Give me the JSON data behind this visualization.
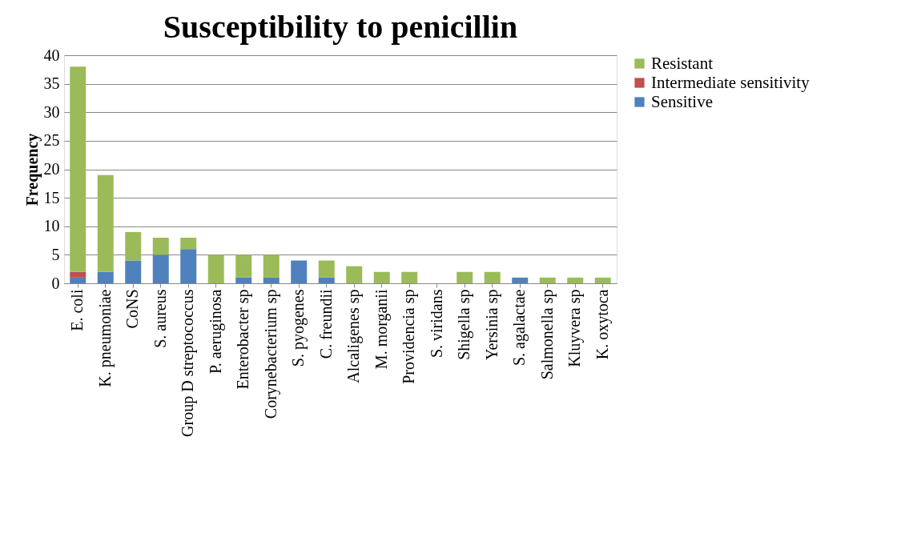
{
  "chart_data": {
    "type": "bar",
    "title": "Susceptibility to penicillin",
    "ylabel": "Frequency",
    "stacked": true,
    "categories": [
      "E. coli",
      "K. pneumoniae",
      "CoNS",
      "S. aureus",
      "Group D streptococcus",
      "P. aeruginosa",
      "Enterobacter sp",
      "Corynebacterium sp",
      "S. pyogenes",
      "C. freundii",
      "Alcaligenes sp",
      "M. morganii",
      "Providencia sp",
      "S. viridans",
      "Shigella sp",
      "Yersinia sp",
      "S. agalactae",
      "Salmonella sp",
      "Kluyvera sp",
      "K. oxytoca"
    ],
    "series": [
      {
        "name": "Sensitive",
        "color": "#4f81bd",
        "values": [
          1,
          2,
          4,
          5,
          6,
          0,
          1,
          1,
          4,
          1,
          0,
          0,
          0,
          0,
          0,
          0,
          1,
          0,
          0,
          0
        ]
      },
      {
        "name": "Intermediate sensitivity",
        "color": "#c0504d",
        "values": [
          1,
          0,
          0,
          0,
          0,
          0,
          0,
          0,
          0,
          0,
          0,
          0,
          0,
          0,
          0,
          0,
          0,
          0,
          0,
          0
        ]
      },
      {
        "name": "Resistant",
        "color": "#9bbb59",
        "values": [
          36,
          17,
          5,
          3,
          2,
          5,
          4,
          4,
          0,
          3,
          3,
          2,
          2,
          0,
          2,
          2,
          0,
          1,
          1,
          1
        ]
      }
    ],
    "ylim": [
      0,
      40
    ],
    "yticks": [
      0,
      5,
      10,
      15,
      20,
      25,
      30,
      35,
      40
    ],
    "grid": "y",
    "legend": "right"
  }
}
